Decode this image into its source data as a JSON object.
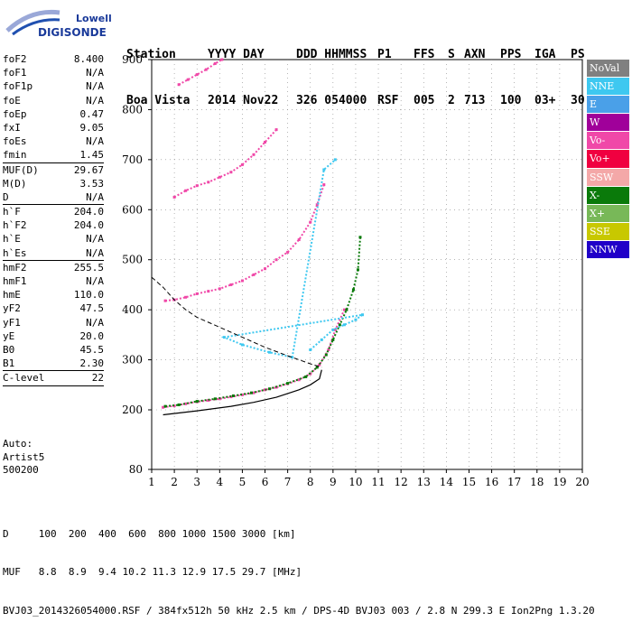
{
  "logo": {
    "line1": "Lowell",
    "line2": "DIGISONDE"
  },
  "header": {
    "labels": [
      "Station",
      "YYYY DAY",
      "DDD HHMMSS",
      "P1",
      "FFS",
      "S",
      "AXN",
      "PPS",
      "IGA",
      "PS"
    ],
    "values": [
      "Boa Vista",
      "2014 Nov22",
      "326 054000",
      "RSF",
      "005",
      "2",
      "713",
      "100",
      "03+",
      "30"
    ]
  },
  "params": [
    {
      "name": "foF2",
      "value": "8.400"
    },
    {
      "name": "foF1",
      "value": "N/A"
    },
    {
      "name": "foF1p",
      "value": "N/A"
    },
    {
      "name": "foE",
      "value": "N/A"
    },
    {
      "name": "foEp",
      "value": "0.47"
    },
    {
      "name": "fxI",
      "value": "9.05"
    },
    {
      "name": "foEs",
      "value": "N/A"
    },
    {
      "name": "fmin",
      "value": "1.45",
      "sep_after": true
    },
    {
      "name": "MUF(D)",
      "value": "29.67"
    },
    {
      "name": "M(D)",
      "value": "3.53"
    },
    {
      "name": "D",
      "value": "N/A",
      "sep_after": true
    },
    {
      "name": "h`F",
      "value": "204.0"
    },
    {
      "name": "h`F2",
      "value": "204.0"
    },
    {
      "name": "h`E",
      "value": "N/A"
    },
    {
      "name": "h`Es",
      "value": "N/A",
      "sep_after": true
    },
    {
      "name": "hmF2",
      "value": "255.5"
    },
    {
      "name": "hmF1",
      "value": "N/A"
    },
    {
      "name": "hmE",
      "value": "110.0"
    },
    {
      "name": "yF2",
      "value": "47.5"
    },
    {
      "name": "yF1",
      "value": "N/A"
    },
    {
      "name": "yE",
      "value": "20.0"
    },
    {
      "name": "B0",
      "value": "45.5"
    },
    {
      "name": "B1",
      "value": "2.30",
      "sep_after": true
    },
    {
      "name": "C-level",
      "value": "22",
      "sep_after": true
    }
  ],
  "autoscaling": {
    "line1": "Auto:",
    "line2": "Artist5",
    "line3": "500200"
  },
  "legend": [
    {
      "label": "NoVal",
      "color": "#808080"
    },
    {
      "label": "NNE",
      "color": "#3ec8f0"
    },
    {
      "label": "E",
      "color": "#4aa0e8"
    },
    {
      "label": "W",
      "color": "#a0009a"
    },
    {
      "label": "Vo-",
      "color": "#f048a8"
    },
    {
      "label": "Vo+",
      "color": "#f00040"
    },
    {
      "label": "SSW",
      "color": "#f4a8a8"
    },
    {
      "label": "X-",
      "color": "#0a7a0a"
    },
    {
      "label": "X+",
      "color": "#78b858"
    },
    {
      "label": "SSE",
      "color": "#c8c800"
    },
    {
      "label": "NNW",
      "color": "#2000c8"
    }
  ],
  "footer": {
    "line1": "D     100  200  400  600  800 1000 1500 3000 [km]",
    "line2": "MUF   8.8  8.9  9.4 10.2 11.3 12.9 17.5 29.7 [MHz]",
    "line3": "BVJ03_2014326054000.RSF / 384fx512h 50 kHz 2.5 km / DPS-4D BVJ03 003 / 2.8 N 299.3 E Ion2Png 1.3.20"
  },
  "chart_data": {
    "type": "scatter",
    "title": "",
    "xlabel": "",
    "ylabel": "",
    "xlim": [
      1,
      20
    ],
    "ylim": [
      80,
      900
    ],
    "x_ticks": [
      1,
      2,
      3,
      4,
      5,
      6,
      7,
      8,
      9,
      10,
      11,
      12,
      13,
      14,
      15,
      16,
      17,
      18,
      19,
      20
    ],
    "y_ticks": [
      80,
      200,
      300,
      400,
      500,
      600,
      700,
      800,
      900
    ],
    "series": [
      {
        "color": "#f048a8",
        "points": [
          [
            1.5,
            205
          ],
          [
            2.0,
            208
          ],
          [
            2.5,
            212
          ],
          [
            3.0,
            216
          ],
          [
            3.5,
            219
          ],
          [
            4.0,
            222
          ],
          [
            4.5,
            226
          ],
          [
            5.0,
            230
          ],
          [
            5.5,
            234
          ],
          [
            6.0,
            240
          ],
          [
            6.5,
            245
          ],
          [
            7.0,
            252
          ],
          [
            7.5,
            260
          ],
          [
            8.0,
            272
          ],
          [
            8.4,
            290
          ],
          [
            8.8,
            320
          ],
          [
            9.1,
            360
          ],
          [
            9.5,
            400
          ]
        ]
      },
      {
        "color": "#0a7a0a",
        "points": [
          [
            1.6,
            207
          ],
          [
            2.2,
            210
          ],
          [
            3.0,
            217
          ],
          [
            3.8,
            222
          ],
          [
            4.6,
            228
          ],
          [
            5.4,
            234
          ],
          [
            6.2,
            242
          ],
          [
            7.0,
            253
          ],
          [
            7.8,
            266
          ],
          [
            8.3,
            285
          ],
          [
            8.7,
            310
          ],
          [
            9.0,
            340
          ],
          [
            9.3,
            370
          ],
          [
            9.6,
            400
          ],
          [
            9.9,
            440
          ],
          [
            10.1,
            480
          ],
          [
            10.2,
            545
          ]
        ]
      },
      {
        "color": "#f048a8",
        "points": [
          [
            1.6,
            418
          ],
          [
            2.0,
            420
          ],
          [
            2.5,
            425
          ],
          [
            3.0,
            432
          ],
          [
            3.5,
            437
          ],
          [
            4.0,
            442
          ],
          [
            4.5,
            450
          ],
          [
            5.0,
            458
          ],
          [
            5.5,
            470
          ],
          [
            6.0,
            482
          ],
          [
            6.5,
            500
          ],
          [
            7.0,
            515
          ],
          [
            7.5,
            540
          ],
          [
            8.0,
            575
          ],
          [
            8.3,
            610
          ],
          [
            8.6,
            650
          ]
        ]
      },
      {
        "color": "#f048a8",
        "points": [
          [
            2.0,
            625
          ],
          [
            2.5,
            638
          ],
          [
            3.0,
            648
          ],
          [
            3.5,
            655
          ],
          [
            4.0,
            665
          ],
          [
            4.5,
            675
          ],
          [
            5.0,
            690
          ],
          [
            5.5,
            710
          ],
          [
            6.0,
            735
          ],
          [
            6.5,
            760
          ]
        ]
      },
      {
        "color": "#f048a8",
        "points": [
          [
            2.2,
            850
          ],
          [
            2.6,
            860
          ],
          [
            3.0,
            870
          ],
          [
            3.4,
            880
          ],
          [
            3.8,
            892
          ],
          [
            4.1,
            900
          ]
        ]
      },
      {
        "color": "#3ec8f0",
        "points": [
          [
            8.0,
            320
          ],
          [
            8.5,
            340
          ],
          [
            9.0,
            360
          ],
          [
            9.5,
            370
          ],
          [
            10.0,
            380
          ],
          [
            10.3,
            390
          ],
          [
            4.2,
            345
          ],
          [
            5.0,
            330
          ],
          [
            6.2,
            315
          ],
          [
            7.2,
            305
          ],
          [
            8.6,
            680
          ],
          [
            9.1,
            700
          ]
        ]
      }
    ],
    "profile_solid": [
      [
        1.5,
        190
      ],
      [
        3.0,
        198
      ],
      [
        4.5,
        207
      ],
      [
        5.5,
        215
      ],
      [
        6.5,
        225
      ],
      [
        7.5,
        240
      ],
      [
        8.0,
        250
      ],
      [
        8.4,
        262
      ],
      [
        8.5,
        280
      ]
    ],
    "profile_dashed": [
      [
        1.0,
        465
      ],
      [
        1.5,
        445
      ],
      [
        2.0,
        420
      ],
      [
        2.5,
        400
      ],
      [
        3.0,
        385
      ],
      [
        4.0,
        365
      ],
      [
        5.0,
        345
      ],
      [
        6.0,
        325
      ],
      [
        7.0,
        308
      ],
      [
        8.0,
        292
      ],
      [
        8.5,
        285
      ]
    ]
  }
}
